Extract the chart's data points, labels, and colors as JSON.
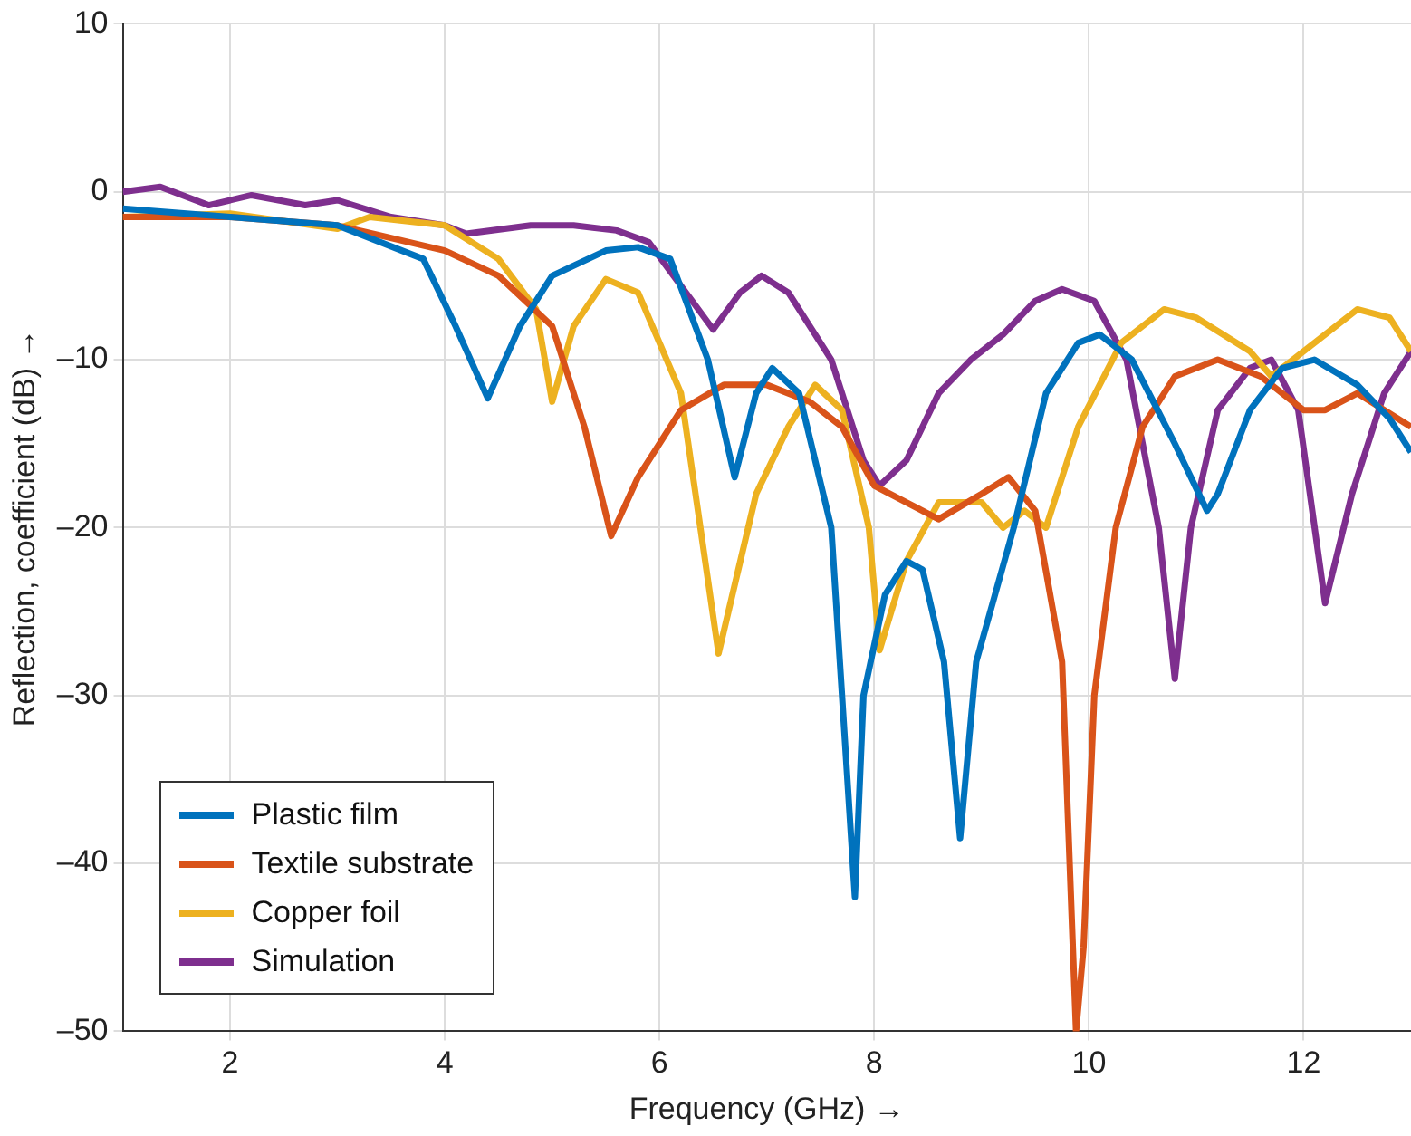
{
  "chart_data": {
    "type": "line",
    "xlabel": "Frequency (GHz) →",
    "ylabel": "Reflection, coefficient (dB) →",
    "xlim": [
      1,
      13
    ],
    "xticks": [
      2,
      4,
      6,
      8,
      10,
      12
    ],
    "ylim": [
      -50,
      10
    ],
    "yticks": [
      {
        "value": -50,
        "label": "–50"
      },
      {
        "value": -40,
        "label": "–40"
      },
      {
        "value": -30,
        "label": "–30"
      },
      {
        "value": -20,
        "label": "–20"
      },
      {
        "value": -10,
        "label": "–10"
      },
      0,
      10
    ],
    "grid": true,
    "legend": "bottom left",
    "marker": "none",
    "series": [
      {
        "name": "Plastic film",
        "color": "#0072bd",
        "x": [
          1,
          2,
          3,
          3.8,
          4.1,
          4.4,
          4.7,
          5,
          5.5,
          5.8,
          6.1,
          6.45,
          6.7,
          6.9,
          7.05,
          7.3,
          7.6,
          7.82,
          7.9,
          8.1,
          8.3,
          8.45,
          8.65,
          8.8,
          8.95,
          9.3,
          9.6,
          9.9,
          10.1,
          10.4,
          10.8,
          11.1,
          11.2,
          11.5,
          11.8,
          12.1,
          12.5,
          12.8,
          13
        ],
        "values": [
          -1,
          -1.5,
          -2,
          -4,
          -8,
          -12.3,
          -8,
          -5,
          -3.5,
          -3.3,
          -4,
          -10,
          -17,
          -12,
          -10.5,
          -12,
          -20,
          -42,
          -30,
          -24,
          -22,
          -22.5,
          -28,
          -38.5,
          -28,
          -20,
          -12,
          -9,
          -8.5,
          -10,
          -15,
          -19,
          -18,
          -13,
          -10.5,
          -10,
          -11.5,
          -13.5,
          -15.5
        ]
      },
      {
        "name": "Textile substrate",
        "color": "#d95319",
        "x": [
          1,
          2,
          3,
          4,
          4.5,
          5,
          5.3,
          5.55,
          5.8,
          6.2,
          6.6,
          7,
          7.4,
          7.7,
          8,
          8.3,
          8.6,
          9,
          9.25,
          9.5,
          9.75,
          9.85,
          9.88,
          9.95,
          10.05,
          10.25,
          10.5,
          10.8,
          11.2,
          11.6,
          12,
          12.2,
          12.5,
          13
        ],
        "values": [
          -1.5,
          -1.5,
          -2,
          -3.5,
          -5,
          -8,
          -14,
          -20.5,
          -17,
          -13,
          -11.5,
          -11.5,
          -12.5,
          -14,
          -17.5,
          -18.5,
          -19.5,
          -18,
          -17,
          -19,
          -28,
          -45,
          -50,
          -45,
          -30,
          -20,
          -14,
          -11,
          -10,
          -11,
          -13,
          -13,
          -12,
          -14
        ]
      },
      {
        "name": "Copper foil",
        "color": "#edb120",
        "x": [
          1,
          2,
          3,
          3.3,
          4,
          4.5,
          4.85,
          5,
          5.2,
          5.5,
          5.8,
          6.2,
          6.55,
          6.9,
          7.2,
          7.45,
          7.7,
          7.95,
          8.05,
          8.3,
          8.6,
          9,
          9.2,
          9.4,
          9.6,
          9.9,
          10.3,
          10.7,
          11,
          11.5,
          11.7,
          12.1,
          12.5,
          12.8,
          13
        ],
        "values": [
          -1.5,
          -1.3,
          -2.2,
          -1.5,
          -2,
          -4,
          -7,
          -12.5,
          -8,
          -5.2,
          -6,
          -12,
          -27.5,
          -18,
          -14,
          -11.5,
          -13,
          -20,
          -27.3,
          -22,
          -18.5,
          -18.5,
          -20,
          -19,
          -20,
          -14,
          -9,
          -7,
          -7.5,
          -9.5,
          -11,
          -9,
          -7,
          -7.5,
          -9.5
        ]
      },
      {
        "name": "Simulation",
        "color": "#7e2f8e",
        "x": [
          1,
          1.35,
          1.8,
          2.2,
          2.7,
          3,
          3.5,
          4,
          4.2,
          4.8,
          5.2,
          5.6,
          5.9,
          6.5,
          6.75,
          6.95,
          7.2,
          7.6,
          7.9,
          8.05,
          8.3,
          8.6,
          8.9,
          9.2,
          9.5,
          9.75,
          10.05,
          10.35,
          10.65,
          10.8,
          10.95,
          11.2,
          11.5,
          11.7,
          11.95,
          12.2,
          12.45,
          12.75,
          13
        ],
        "values": [
          0,
          0.3,
          -0.8,
          -0.2,
          -0.8,
          -0.5,
          -1.5,
          -2,
          -2.5,
          -2,
          -2,
          -2.3,
          -3,
          -8.2,
          -6,
          -5,
          -6,
          -10,
          -16,
          -17.5,
          -16,
          -12,
          -10,
          -8.5,
          -6.5,
          -5.8,
          -6.5,
          -10,
          -20,
          -29,
          -20,
          -13,
          -10.5,
          -10,
          -13,
          -24.5,
          -18,
          -12,
          -9.5
        ]
      }
    ]
  }
}
